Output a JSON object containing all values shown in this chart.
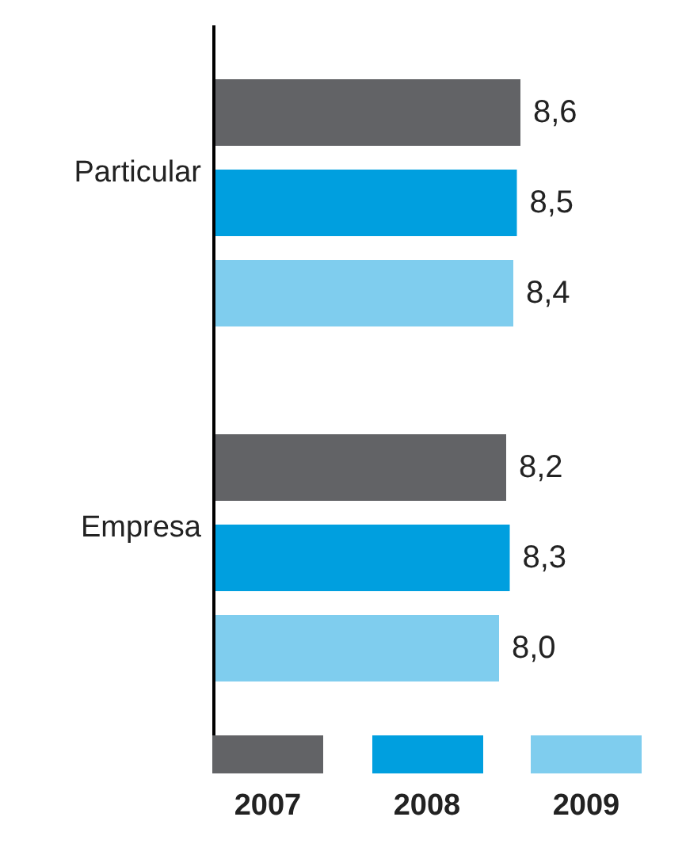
{
  "chart_data": {
    "type": "bar",
    "orientation": "horizontal",
    "categories": [
      "Particular",
      "Empresa"
    ],
    "series": [
      {
        "name": "2007",
        "color": "#626366",
        "values": [
          8.6,
          8.2
        ],
        "value_labels": [
          "8,6",
          "8,2"
        ]
      },
      {
        "name": "2008",
        "color": "#009fdf",
        "values": [
          8.5,
          8.3
        ],
        "value_labels": [
          "8,5",
          "8,3"
        ]
      },
      {
        "name": "2009",
        "color": "#7fcdee",
        "values": [
          8.4,
          8.0
        ],
        "value_labels": [
          "8,4",
          "8,0"
        ]
      }
    ],
    "tick_labels": "y",
    "grid": false,
    "legend": "bottom"
  }
}
